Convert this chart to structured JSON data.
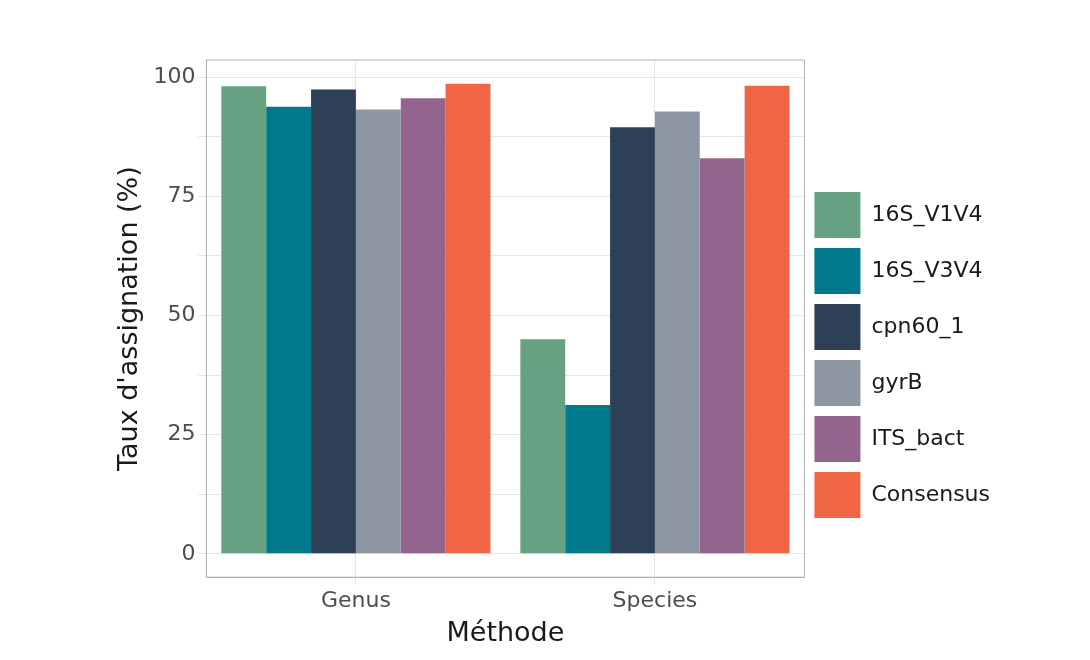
{
  "chart_data": {
    "type": "bar",
    "xlabel": "Méthode",
    "ylabel": "Taux d'assignation (%)",
    "categories": [
      "Genus",
      "Species"
    ],
    "series": [
      {
        "name": "16S_V1V4",
        "color": "#66a182",
        "values": [
          98.1,
          45.0
        ]
      },
      {
        "name": "16S_V3V4",
        "color": "#00798c",
        "values": [
          93.8,
          31.2
        ]
      },
      {
        "name": "cpn60_1",
        "color": "#2e4057",
        "values": [
          97.4,
          89.5
        ]
      },
      {
        "name": "gyrB",
        "color": "#8d96a3",
        "values": [
          93.2,
          92.8
        ]
      },
      {
        "name": "ITS_bact",
        "color": "#93648d",
        "values": [
          95.6,
          83.0
        ]
      },
      {
        "name": "Consensus",
        "color": "#f06543",
        "values": [
          98.6,
          98.2
        ]
      }
    ],
    "ylim": [
      -4.9,
      103.6
    ],
    "yticks": [
      0,
      {
        "value": 12.5,
        "label": null
      },
      25,
      {
        "value": 37.5,
        "label": null
      },
      50,
      {
        "value": 62.5,
        "label": null
      },
      75,
      {
        "value": 87.5,
        "label": null
      },
      100
    ],
    "grid": true,
    "legend": "right"
  }
}
